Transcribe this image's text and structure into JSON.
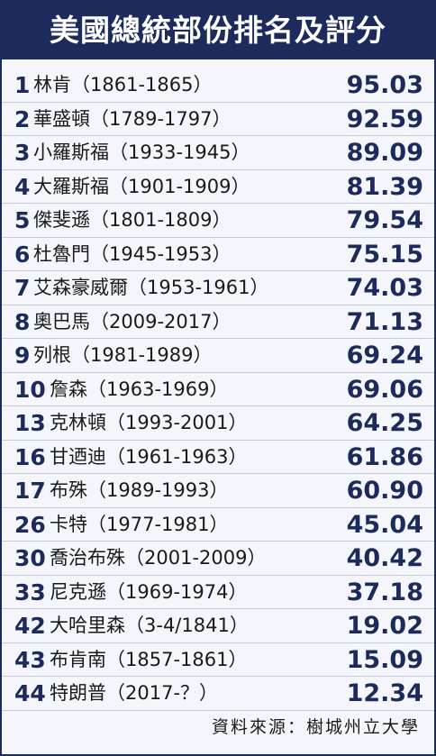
{
  "title": "美國總統部份排名及評分",
  "table": {
    "rows": [
      [
        "1",
        "林肯（1861-1865）",
        "95.03"
      ],
      [
        "2",
        "華盛頓（1789-1797）",
        "92.59"
      ],
      [
        "3",
        "小羅斯福（1933-1945）",
        "89.09"
      ],
      [
        "4",
        "大羅斯福（1901-1909）",
        "81.39"
      ],
      [
        "5",
        "傑斐遜（1801-1809）",
        "79.54"
      ],
      [
        "6",
        "杜魯門（1945-1953）",
        "75.15"
      ],
      [
        "7",
        "艾森豪威爾（1953-1961）",
        "74.03"
      ],
      [
        "8",
        "奧巴馬（2009-2017）",
        "71.13"
      ],
      [
        "9",
        "列根（1981-1989）",
        "69.24"
      ],
      [
        "10",
        "詹森（1963-1969）",
        "69.06"
      ],
      [
        "13",
        "克林頓（1993-2001）",
        "64.25"
      ],
      [
        "16",
        "甘迺迪（1961-1963）",
        "61.86"
      ],
      [
        "17",
        "布殊（1989-1993）",
        "60.90"
      ],
      [
        "26",
        "卡特（1977-1981）",
        "45.04"
      ],
      [
        "30",
        "喬治布殊（2001-2009）",
        "40.42"
      ],
      [
        "33",
        "尼克遜（1969-1974）",
        "37.18"
      ],
      [
        "42",
        "大哈里森（3-4/1841）",
        "19.02"
      ],
      [
        "43",
        "布肯南（1857-1861）",
        "15.09"
      ],
      [
        "44",
        "特朗普（2017-？）",
        "12.34"
      ]
    ]
  },
  "footer": "資料來源：樹城州立大學"
}
